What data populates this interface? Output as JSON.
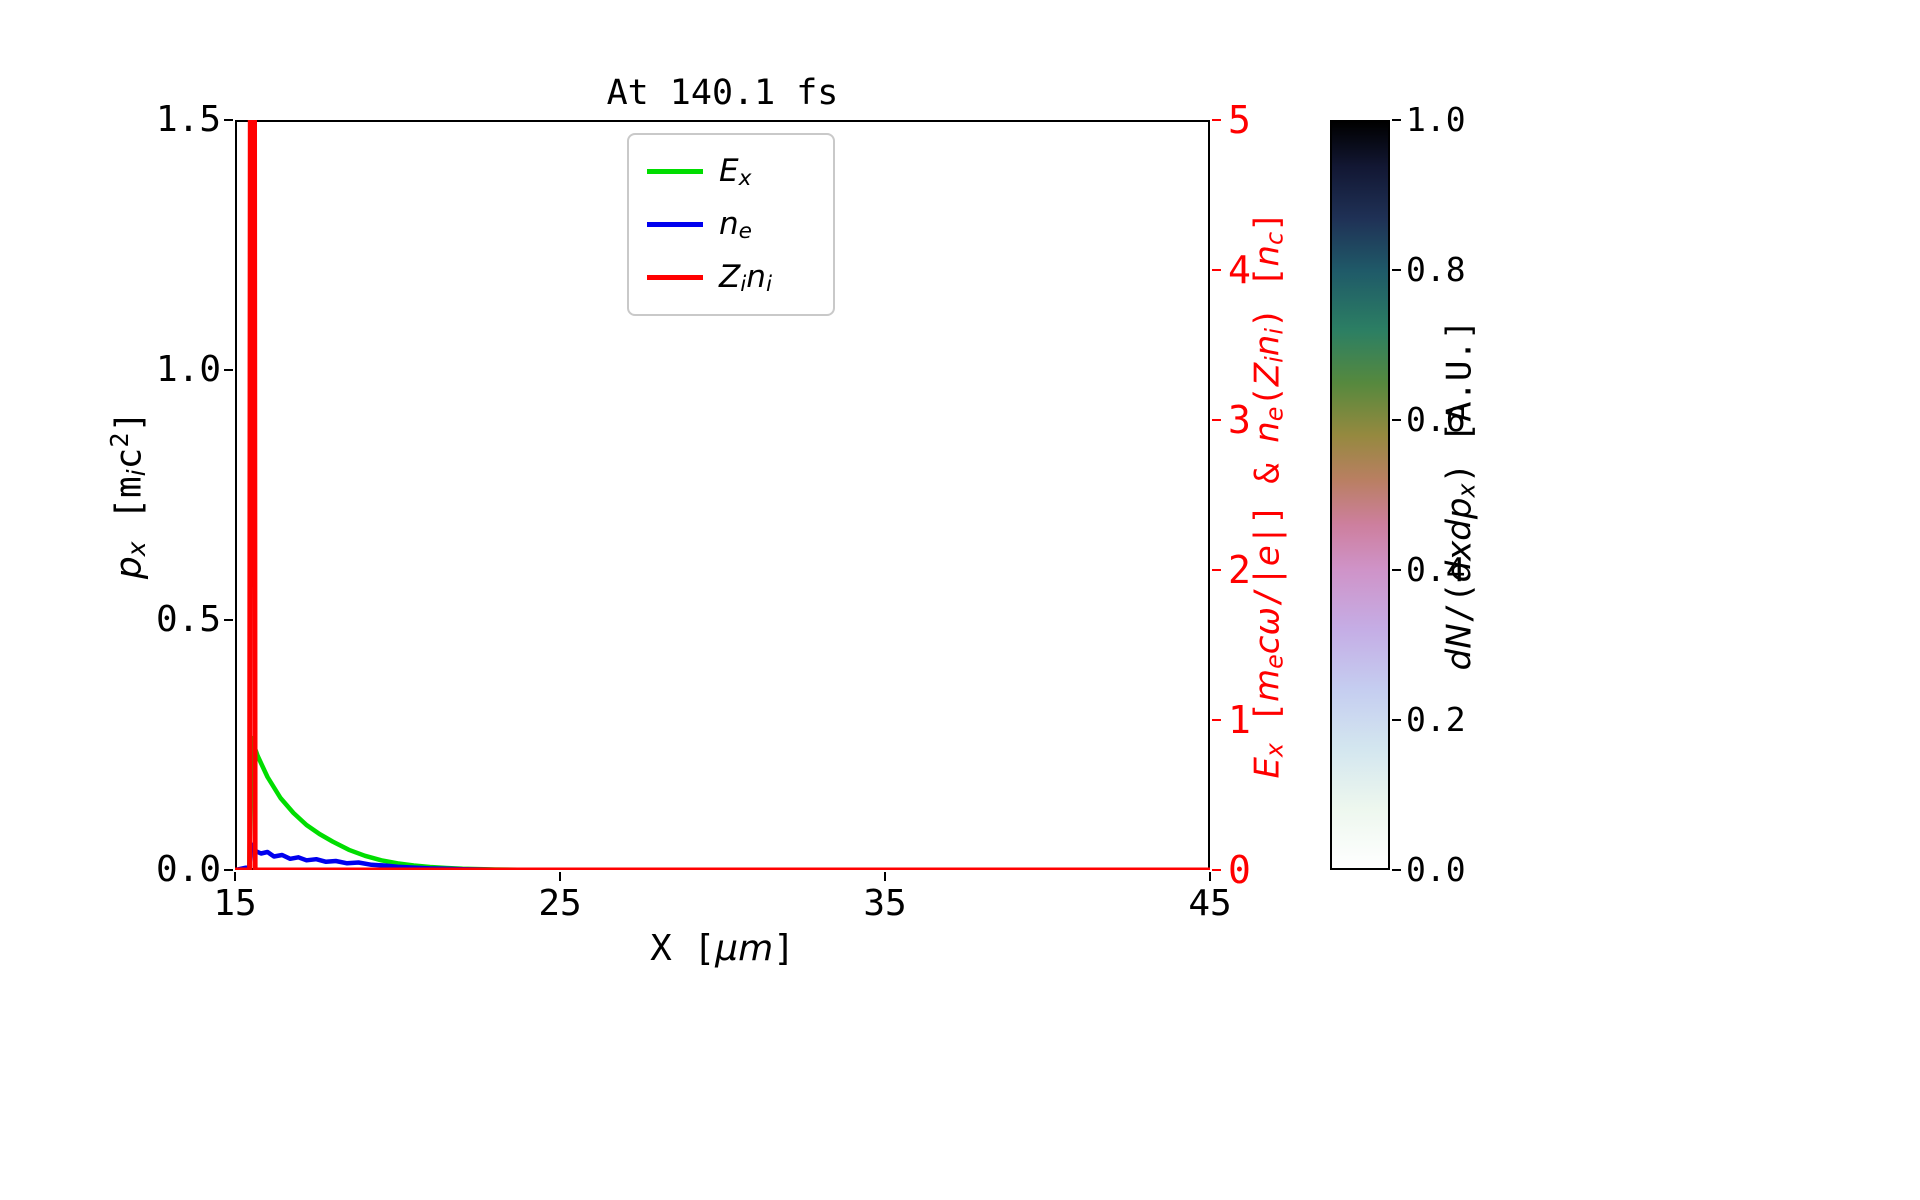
{
  "figure": {
    "background": "#ffffff"
  },
  "chart_data": {
    "type": "line",
    "title": "At 140.1 fs",
    "grid": false,
    "legend_position": "upper center",
    "x_axis": {
      "label_text": "X [um]",
      "label_segments": [
        {
          "t": "X [",
          "i": false
        },
        {
          "t": "μm",
          "i": true
        },
        {
          "t": "]",
          "i": false
        }
      ],
      "lim": [
        15,
        45
      ],
      "ticks": [
        {
          "v": 15,
          "label": "15"
        },
        {
          "v": 25,
          "label": "25"
        },
        {
          "v": 35,
          "label": "35"
        },
        {
          "v": 45,
          "label": "45"
        }
      ]
    },
    "y_axis_left": {
      "label_text": "p_x [m_i c^2]",
      "label_segments": [
        {
          "t": "p",
          "i": true
        },
        {
          "t": "x",
          "i": true,
          "sub": true
        },
        {
          "t": " [",
          "i": false
        },
        {
          "t": "m",
          "i": false
        },
        {
          "t": "i",
          "i": true,
          "sub": true
        },
        {
          "t": "c",
          "i": false
        },
        {
          "t": "2",
          "i": false,
          "sup": true
        },
        {
          "t": "]",
          "i": false
        }
      ],
      "lim": [
        0,
        1.5
      ],
      "ticks": [
        {
          "v": 0,
          "label": "0.0"
        },
        {
          "v": 0.5,
          "label": "0.5"
        },
        {
          "v": 1,
          "label": "1.0"
        },
        {
          "v": 1.5,
          "label": "1.5"
        }
      ],
      "color": "#000000"
    },
    "y_axis_right": {
      "label_text": "E_x [m_e c w/|e|] & n_e(Z_i n_i) [n_c]",
      "label_segments": [
        {
          "t": "E",
          "i": true
        },
        {
          "t": "x",
          "i": true,
          "sub": true
        },
        {
          "t": " [",
          "i": false
        },
        {
          "t": "m",
          "i": true
        },
        {
          "t": "e",
          "i": true,
          "sub": true
        },
        {
          "t": "cω",
          "i": true
        },
        {
          "t": "/|",
          "i": false
        },
        {
          "t": "e",
          "i": true
        },
        {
          "t": "|] & ",
          "i": false
        },
        {
          "t": "n",
          "i": true
        },
        {
          "t": "e",
          "i": true,
          "sub": true
        },
        {
          "t": "(",
          "i": false
        },
        {
          "t": "Z",
          "i": true
        },
        {
          "t": "i",
          "i": true,
          "sub": true
        },
        {
          "t": "n",
          "i": true
        },
        {
          "t": "i",
          "i": true,
          "sub": true
        },
        {
          "t": ") [",
          "i": false
        },
        {
          "t": "n",
          "i": true
        },
        {
          "t": "c",
          "i": true,
          "sub": true
        },
        {
          "t": "]",
          "i": false
        }
      ],
      "lim": [
        0,
        5
      ],
      "ticks": [
        {
          "v": 0,
          "label": "0"
        },
        {
          "v": 1,
          "label": "1"
        },
        {
          "v": 2,
          "label": "2"
        },
        {
          "v": 3,
          "label": "3"
        },
        {
          "v": 4,
          "label": "4"
        },
        {
          "v": 5,
          "label": "5"
        }
      ],
      "color": "#ff0000"
    },
    "series": [
      {
        "name": "ex",
        "label_text": "E_x",
        "label_segments": [
          {
            "t": "E",
            "i": true
          },
          {
            "t": "x",
            "i": true,
            "sub": true
          }
        ],
        "color": "#00dd00",
        "axis": "right",
        "width": 4.5,
        "points": [
          [
            15.0,
            0.0
          ],
          [
            15.44,
            0.0
          ],
          [
            15.5,
            0.88
          ],
          [
            15.7,
            0.76
          ],
          [
            16.0,
            0.62
          ],
          [
            16.4,
            0.48
          ],
          [
            16.8,
            0.38
          ],
          [
            17.2,
            0.3
          ],
          [
            17.6,
            0.24
          ],
          [
            18.0,
            0.19
          ],
          [
            18.5,
            0.135
          ],
          [
            19.0,
            0.095
          ],
          [
            19.5,
            0.065
          ],
          [
            20.0,
            0.045
          ],
          [
            20.5,
            0.03
          ],
          [
            21.0,
            0.02
          ],
          [
            21.5,
            0.013
          ],
          [
            22.0,
            0.008
          ],
          [
            23.0,
            0.003
          ],
          [
            24.0,
            0.001
          ],
          [
            25.0,
            0.0
          ],
          [
            45.0,
            0.0
          ]
        ]
      },
      {
        "name": "ne",
        "label_text": "n_e",
        "label_segments": [
          {
            "t": "n",
            "i": true
          },
          {
            "t": "e",
            "i": true,
            "sub": true
          }
        ],
        "color": "#0000ee",
        "axis": "right",
        "width": 4.5,
        "points": [
          [
            15.0,
            0.0
          ],
          [
            15.44,
            0.02
          ],
          [
            15.5,
            0.17
          ],
          [
            15.6,
            0.13
          ],
          [
            15.8,
            0.11
          ],
          [
            16.0,
            0.12
          ],
          [
            16.2,
            0.09
          ],
          [
            16.45,
            0.1
          ],
          [
            16.7,
            0.075
          ],
          [
            16.95,
            0.085
          ],
          [
            17.2,
            0.065
          ],
          [
            17.5,
            0.072
          ],
          [
            17.8,
            0.055
          ],
          [
            18.1,
            0.06
          ],
          [
            18.45,
            0.045
          ],
          [
            18.8,
            0.05
          ],
          [
            19.2,
            0.035
          ],
          [
            19.6,
            0.03
          ],
          [
            20.0,
            0.022
          ],
          [
            20.5,
            0.016
          ],
          [
            21.0,
            0.011
          ],
          [
            21.5,
            0.008
          ],
          [
            22.0,
            0.005
          ],
          [
            23.0,
            0.002
          ],
          [
            24.0,
            0.001
          ],
          [
            25.0,
            0.0
          ],
          [
            45.0,
            0.0
          ]
        ]
      },
      {
        "name": "zini",
        "label_text": "Z_i n_i",
        "label_segments": [
          {
            "t": "Z",
            "i": true
          },
          {
            "t": "i",
            "i": true,
            "sub": true
          },
          {
            "t": "n",
            "i": true
          },
          {
            "t": "i",
            "i": true,
            "sub": true
          }
        ],
        "color": "#ff0000",
        "axis": "right",
        "width": 5,
        "points": [
          [
            15.0,
            0.0
          ],
          [
            15.45,
            0.0
          ],
          [
            15.47,
            5.0
          ],
          [
            15.6,
            5.0
          ],
          [
            15.62,
            0.0
          ],
          [
            45.0,
            0.0
          ]
        ]
      }
    ],
    "colorbar": {
      "label_text": "dN/(dxdp_x) [A.U.]",
      "label_segments": [
        {
          "t": "dN",
          "i": true
        },
        {
          "t": "/(",
          "i": false
        },
        {
          "t": "dxdp",
          "i": true
        },
        {
          "t": "x",
          "i": true,
          "sub": true
        },
        {
          "t": ")",
          "i": false
        },
        {
          "t": " [A.U.]",
          "i": false
        }
      ],
      "lim": [
        0,
        1
      ],
      "ticks": [
        {
          "v": 0,
          "label": "0.0"
        },
        {
          "v": 0.2,
          "label": "0.2"
        },
        {
          "v": 0.4,
          "label": "0.4"
        },
        {
          "v": 0.6,
          "label": "0.6"
        },
        {
          "v": 0.8,
          "label": "0.8"
        },
        {
          "v": 1,
          "label": "1.0"
        }
      ],
      "gradient_stops": [
        {
          "pos": 0.0,
          "color": "#ffffff"
        },
        {
          "pos": 0.08,
          "color": "#edf7ee"
        },
        {
          "pos": 0.16,
          "color": "#d3e6ef"
        },
        {
          "pos": 0.24,
          "color": "#c5cdf0"
        },
        {
          "pos": 0.32,
          "color": "#c5ade5"
        },
        {
          "pos": 0.4,
          "color": "#cf93c8"
        },
        {
          "pos": 0.46,
          "color": "#cd7f9e"
        },
        {
          "pos": 0.52,
          "color": "#b97f62"
        },
        {
          "pos": 0.58,
          "color": "#95893f"
        },
        {
          "pos": 0.65,
          "color": "#56893e"
        },
        {
          "pos": 0.72,
          "color": "#2c7f63"
        },
        {
          "pos": 0.8,
          "color": "#1f5a68"
        },
        {
          "pos": 0.87,
          "color": "#1f3156"
        },
        {
          "pos": 0.94,
          "color": "#121733"
        },
        {
          "pos": 1.0,
          "color": "#000000"
        }
      ]
    }
  }
}
